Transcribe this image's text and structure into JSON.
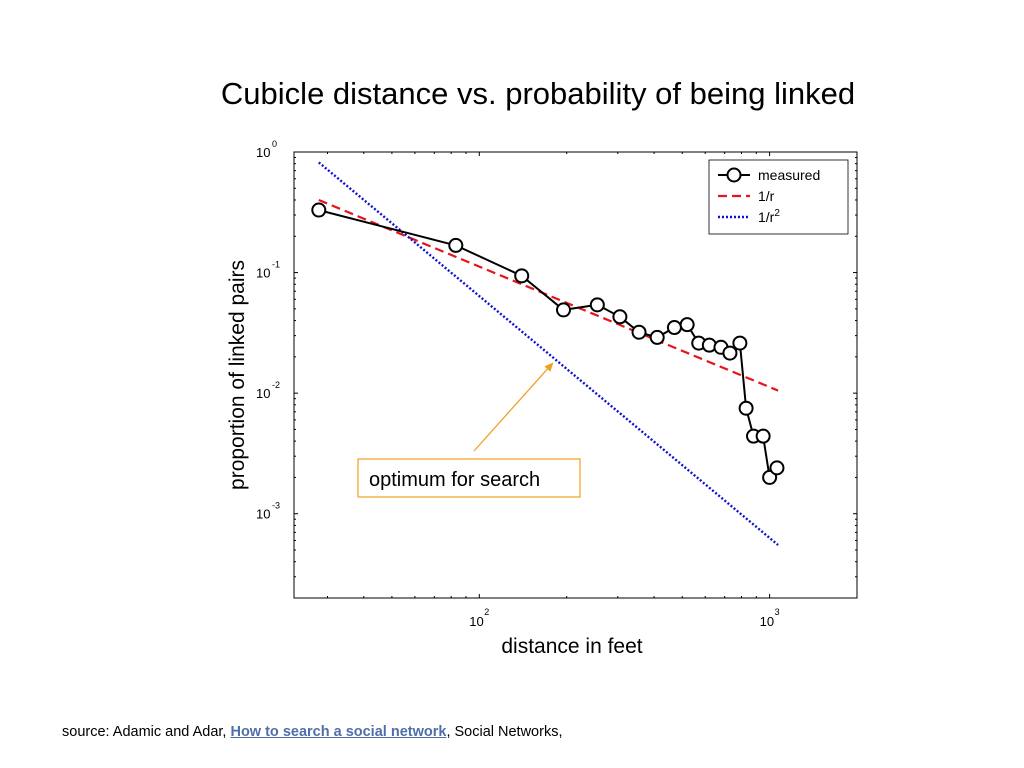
{
  "chart_data": {
    "type": "line",
    "title": "Cubicle distance vs. probability of being linked",
    "xlabel": "distance in feet",
    "ylabel": "proportion of linked pairs",
    "xscale": "log",
    "yscale": "log",
    "xlim": [
      23,
      2000
    ],
    "ylim": [
      0.0002,
      1
    ],
    "x_ticks": [
      {
        "base": "10",
        "exp": "2",
        "value": 100
      },
      {
        "base": "10",
        "exp": "3",
        "value": 1000
      }
    ],
    "y_ticks": [
      {
        "base": "10",
        "exp": "0",
        "value": 1
      },
      {
        "base": "10",
        "exp": "-1",
        "value": 0.1
      },
      {
        "base": "10",
        "exp": "-2",
        "value": 0.01
      },
      {
        "base": "10",
        "exp": "-3",
        "value": 0.001
      }
    ],
    "legend_position": "top-right",
    "series": [
      {
        "name": "measured",
        "style": "solid-circle-markers",
        "color": "#000000",
        "points": [
          [
            28,
            0.33
          ],
          [
            83,
            0.168
          ],
          [
            140,
            0.094
          ],
          [
            195,
            0.049
          ],
          [
            255,
            0.054
          ],
          [
            305,
            0.043
          ],
          [
            355,
            0.032
          ],
          [
            410,
            0.029
          ],
          [
            470,
            0.035
          ],
          [
            520,
            0.037
          ],
          [
            570,
            0.026
          ],
          [
            620,
            0.025
          ],
          [
            680,
            0.024
          ],
          [
            730,
            0.0215
          ],
          [
            790,
            0.026
          ],
          [
            830,
            0.0075
          ],
          [
            880,
            0.0044
          ],
          [
            950,
            0.0044
          ],
          [
            1000,
            0.002
          ],
          [
            1060,
            0.0024
          ]
        ]
      },
      {
        "name": "1/r",
        "legend_label": "1/r",
        "style": "dashed",
        "color": "#e8141b",
        "points": [
          [
            28,
            0.4
          ],
          [
            1070,
            0.0105
          ]
        ]
      },
      {
        "name": "1/r2",
        "legend_label": "1/r",
        "legend_sup": "2",
        "style": "dotted",
        "color": "#1010d0",
        "points": [
          [
            28,
            0.82
          ],
          [
            1070,
            0.00055
          ]
        ]
      }
    ],
    "annotation": {
      "text": "optimum for search",
      "color": "#f0a020",
      "arrow_to": [
        180,
        0.018
      ]
    }
  },
  "footer": {
    "prefix": "source: Adamic and Adar, ",
    "link_text": "How to search a social network",
    "suffix": ", Social Networks,"
  }
}
